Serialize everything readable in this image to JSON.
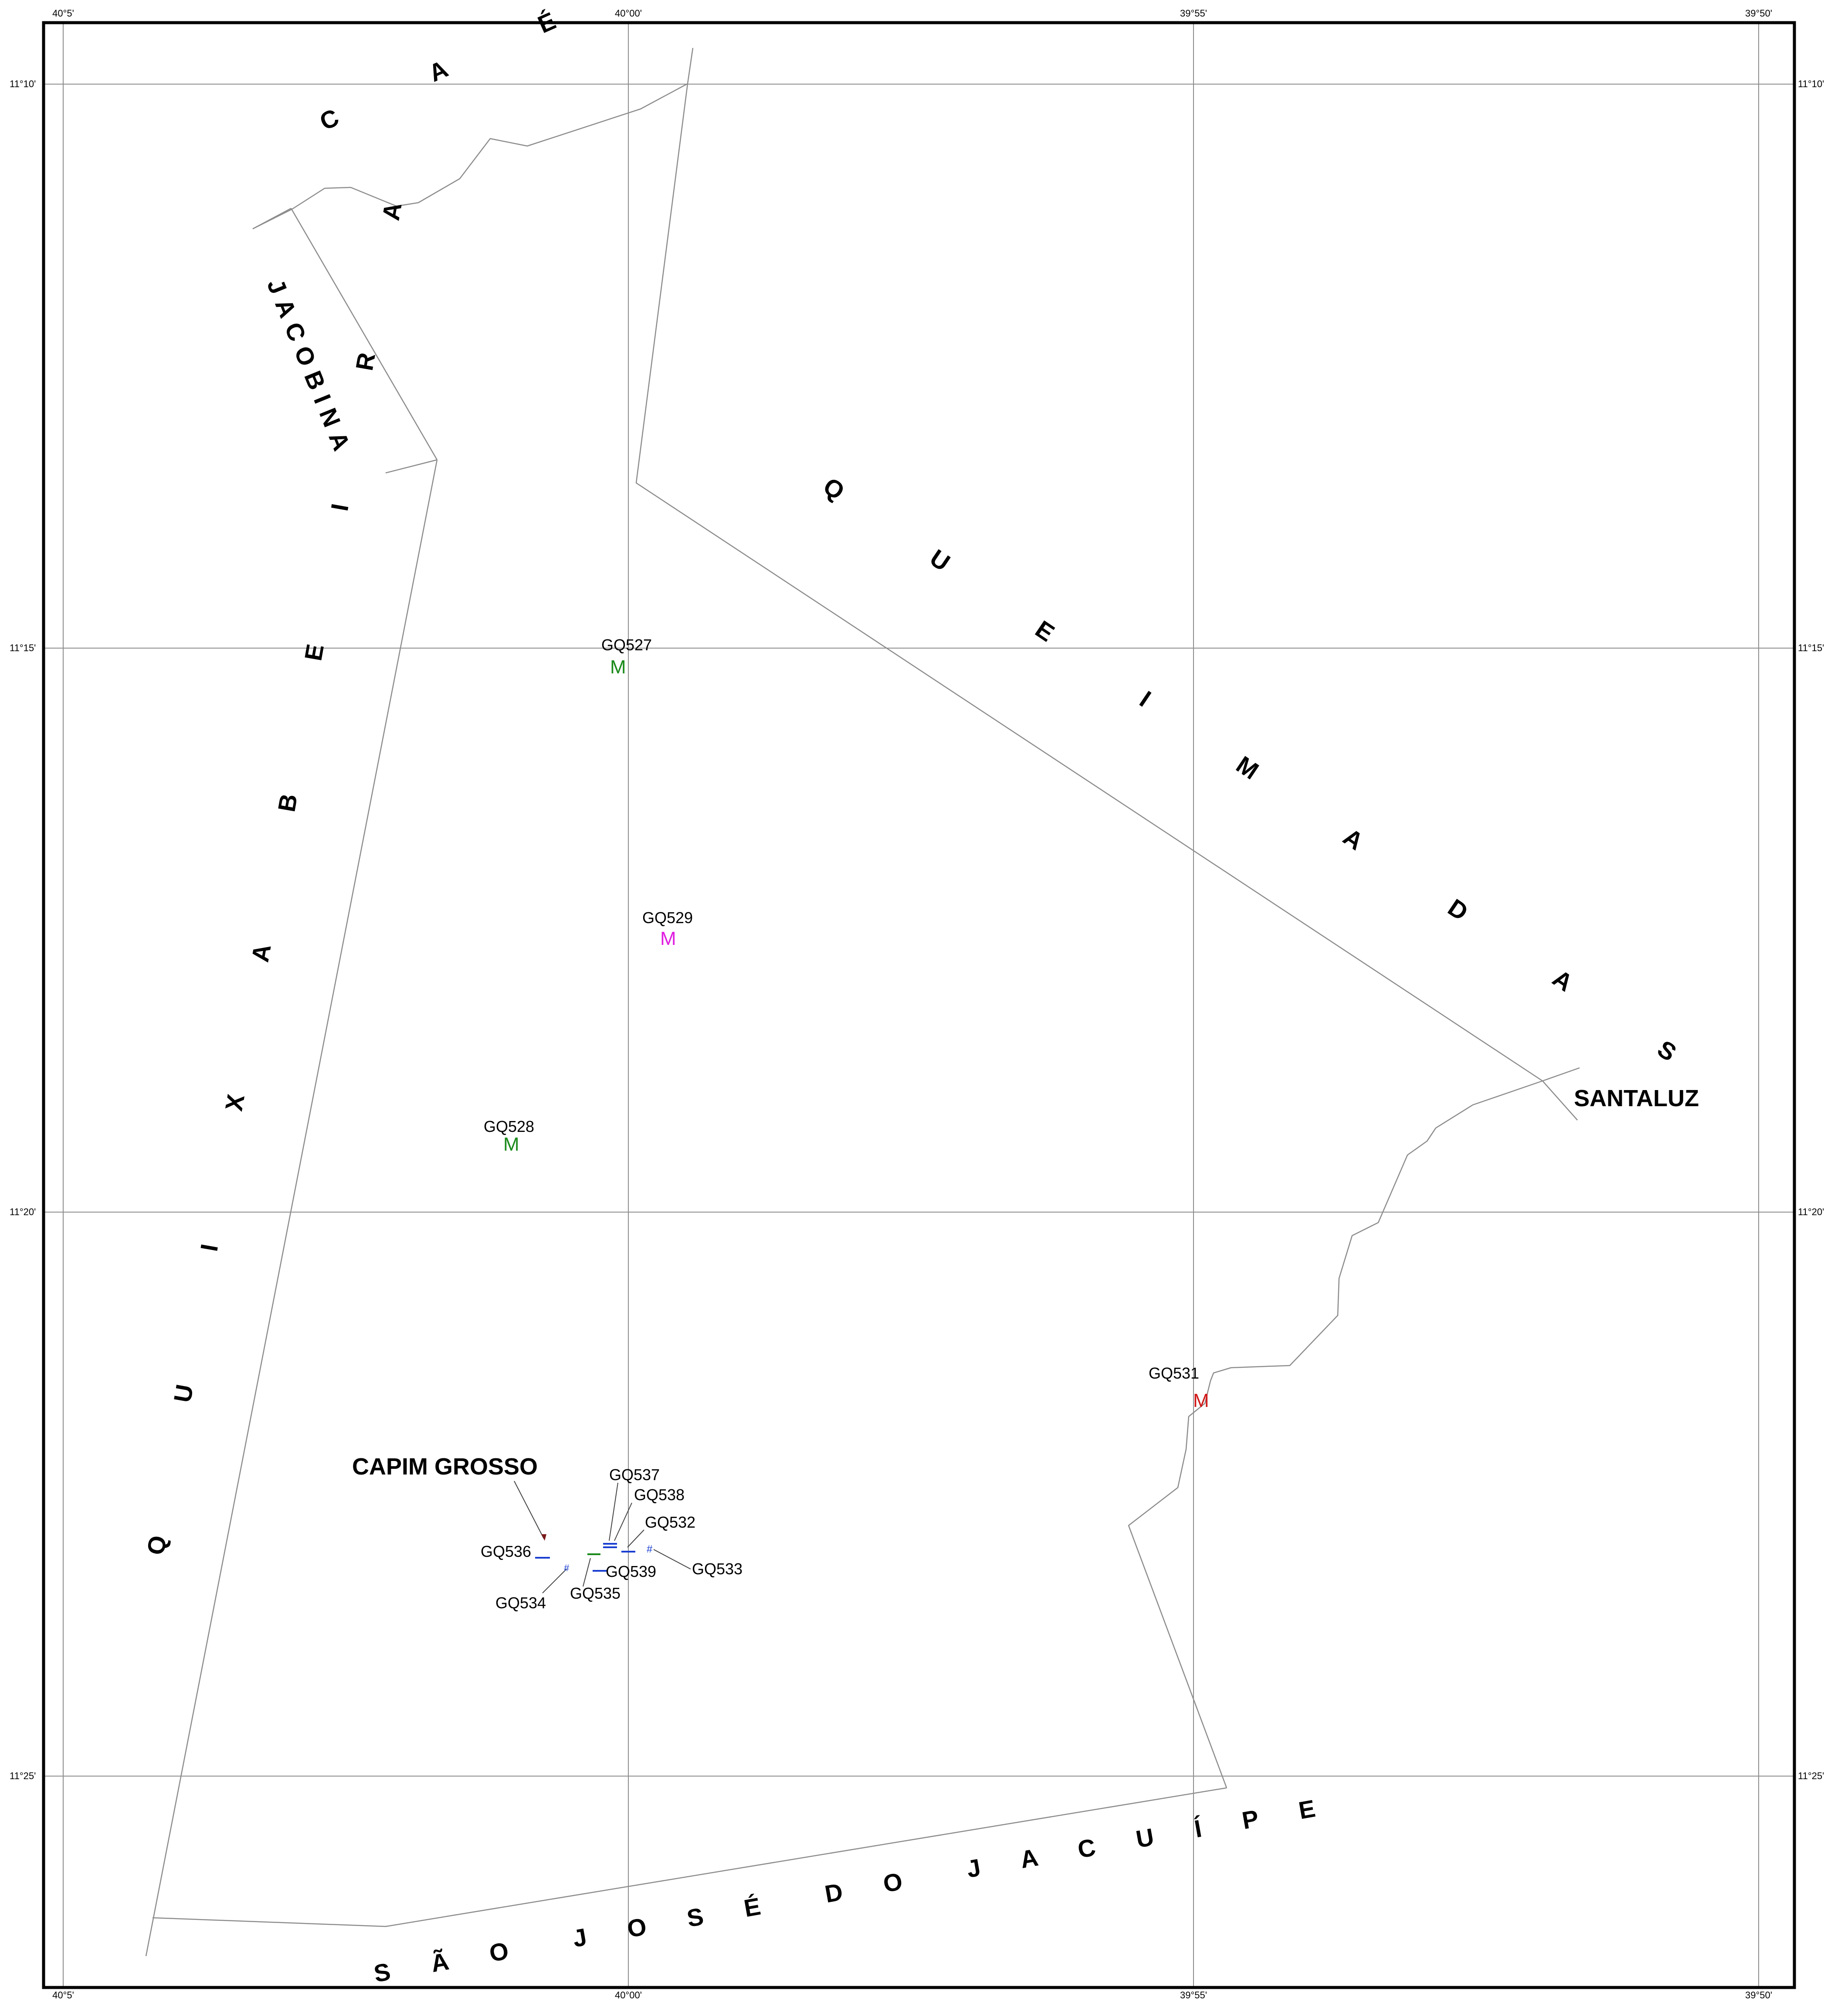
{
  "map": {
    "coordinate_ticks": {
      "longitude": [
        "40°5'",
        "40°00'",
        "39°55'",
        "39°50'"
      ],
      "latitude": [
        "11°10'",
        "11°15'",
        "11°20'",
        "11°25'"
      ]
    },
    "municipalities": {
      "caem": "C A É M",
      "jacobina": "JACOBINA",
      "queimadas": "Q U E I M A D A S",
      "quixabeira": "Q U I X A B E I R A",
      "sao_jose": "S Ã O  J O S É  D O  J A C U Í P E"
    },
    "towns": {
      "capim_grosso": "CAPIM GROSSO",
      "santaluz": "SANTALUZ"
    },
    "samples": [
      {
        "id": "gq527",
        "label": "GQ527",
        "symbol": "M",
        "color": "#1a8a1a"
      },
      {
        "id": "gq528",
        "label": "GQ528",
        "symbol": "M",
        "color": "#1a8a1a"
      },
      {
        "id": "gq529",
        "label": "GQ529",
        "symbol": "M",
        "color": "#e01ee0"
      },
      {
        "id": "gq531",
        "label": "GQ531",
        "symbol": "M",
        "color": "#d01818"
      },
      {
        "id": "gq532",
        "label": "GQ532",
        "symbol": "–",
        "color": "#1a3fd0"
      },
      {
        "id": "gq533",
        "label": "GQ533",
        "symbol": "#",
        "color": "#1a3fd0"
      },
      {
        "id": "gq534",
        "label": "GQ534",
        "symbol": "#",
        "color": "#1a3fd0"
      },
      {
        "id": "gq535",
        "label": "GQ535",
        "symbol": "–",
        "color": "#1a3fd0"
      },
      {
        "id": "gq536",
        "label": "GQ536",
        "symbol": "–",
        "color": "#1a3fd0"
      },
      {
        "id": "gq537",
        "label": "GQ537",
        "symbol": "=",
        "color": "#1a3fd0"
      },
      {
        "id": "gq538",
        "label": "GQ538",
        "symbol": "–",
        "color": "#1a3fd0"
      },
      {
        "id": "gq539",
        "label": "GQ539",
        "symbol": "–",
        "color": "#1a8a1a"
      }
    ],
    "colors": {
      "boundary": "#8c8c8c",
      "grid": "#8c8c8c",
      "frame": "#000000"
    }
  }
}
